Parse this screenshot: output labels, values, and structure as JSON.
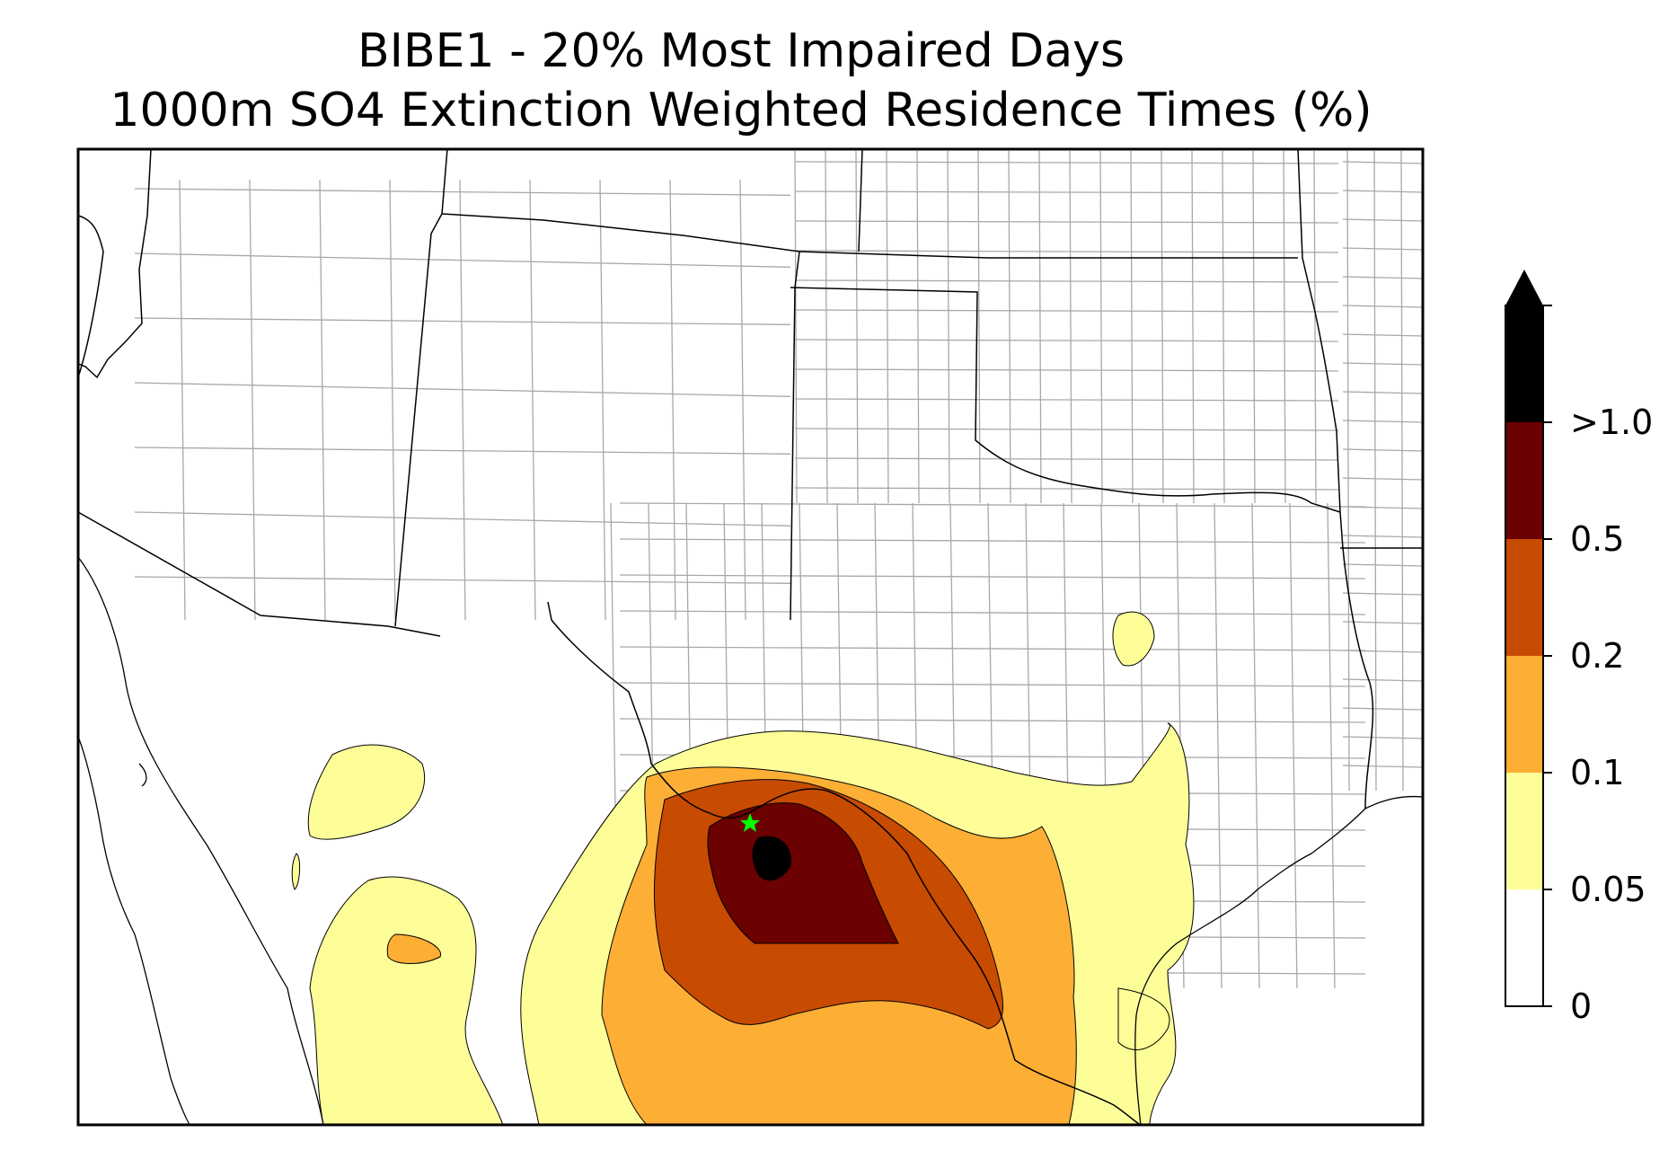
{
  "title": {
    "line1": "BIBE1 - 20% Most Impaired Days",
    "line2": "1000m SO4 Extinction Weighted Residence Times (%)"
  },
  "colorbar": {
    "labels": [
      "0",
      "0.05",
      "0.1",
      "0.2",
      "0.5",
      ">1.0"
    ],
    "colors": [
      "#ffffff",
      "#fefe99",
      "#fdae35",
      "#c84b02",
      "#6b0100",
      "#000000"
    ]
  },
  "map": {
    "site_marker_color": "#00ff00",
    "site_marker_icon": "star-icon"
  }
}
